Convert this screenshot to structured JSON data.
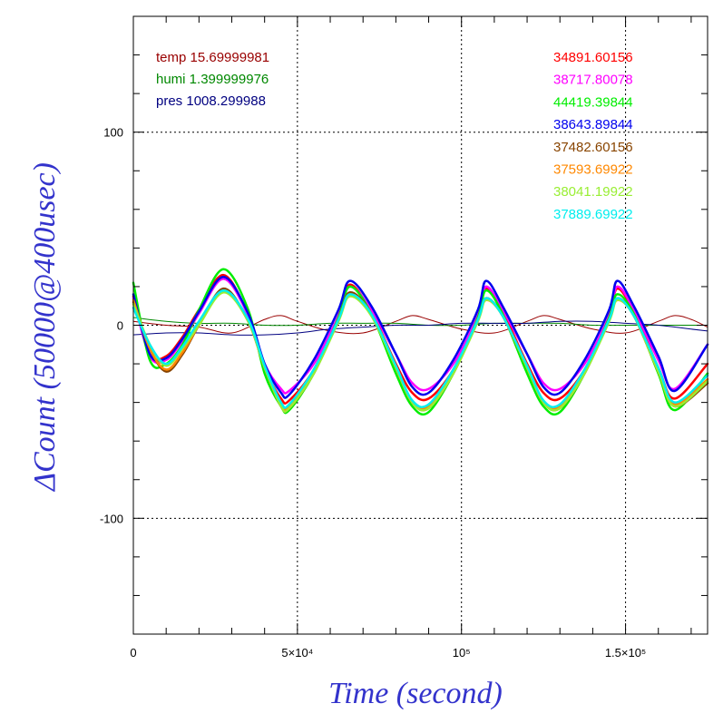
{
  "chart_data": {
    "type": "line",
    "xlabel": "Time (second)",
    "ylabel": "ΔCount (50000@400usec)",
    "xlim": [
      0,
      175000
    ],
    "ylim": [
      -160,
      160
    ],
    "x_ticks": [
      {
        "value": 0,
        "label": "0"
      },
      {
        "value": 50000,
        "label": "5×10⁴"
      },
      {
        "value": 100000,
        "label": "10⁵"
      },
      {
        "value": 150000,
        "label": "1.5×10⁵"
      }
    ],
    "y_ticks": [
      {
        "value": 100,
        "label": "100"
      },
      {
        "value": 0,
        "label": "0"
      },
      {
        "value": -100,
        "label": "-100"
      }
    ],
    "grid": true,
    "left_legend": [
      {
        "label": "temp",
        "value": "15.69999981",
        "color": "#990000"
      },
      {
        "label": "humi",
        "value": "1.399999976",
        "color": "#008800"
      },
      {
        "label": "pres",
        "value": "1008.299988",
        "color": "#000080"
      }
    ],
    "series": [
      {
        "name": "34891.60156",
        "color": "#ff0000",
        "x": [
          0,
          5000,
          10000,
          15000,
          20000,
          27500,
          35000,
          40000,
          45000,
          47500,
          55000,
          62500,
          66000,
          72500,
          80000,
          85000,
          90000,
          97500,
          105000,
          107500,
          112500,
          120000,
          125000,
          130000,
          137500,
          145000,
          147500,
          152500,
          160000,
          165000,
          175000
        ],
        "values": [
          15,
          -15,
          -16,
          -6,
          8,
          26,
          5,
          -22,
          -38,
          -39,
          -23,
          5,
          21,
          7,
          -20,
          -35,
          -38,
          -23,
          5,
          19,
          7,
          -20,
          -35,
          -38,
          -23,
          5,
          19,
          7,
          -22,
          -38,
          -20
        ]
      },
      {
        "name": "38717.80078",
        "color": "#ff00ff",
        "x": [
          0,
          5000,
          10000,
          15000,
          20000,
          27500,
          35000,
          40000,
          45000,
          47500,
          55000,
          62500,
          66000,
          72500,
          80000,
          85000,
          90000,
          97500,
          105000,
          107500,
          112500,
          120000,
          125000,
          130000,
          137500,
          145000,
          147500,
          152500,
          160000,
          165000,
          175000
        ],
        "values": [
          14,
          -16,
          -18,
          -8,
          6,
          24,
          5,
          -20,
          -33,
          -34,
          -20,
          5,
          20,
          8,
          -15,
          -30,
          -33,
          -20,
          5,
          20,
          8,
          -15,
          -30,
          -33,
          -20,
          5,
          20,
          8,
          -18,
          -33,
          -10
        ]
      },
      {
        "name": "44419.39844",
        "color": "#00ee00",
        "x": [
          0,
          5000,
          10000,
          15000,
          20000,
          27500,
          35000,
          40000,
          45000,
          47500,
          55000,
          62500,
          66000,
          72500,
          80000,
          85000,
          90000,
          97500,
          105000,
          107500,
          112500,
          120000,
          125000,
          130000,
          137500,
          145000,
          147500,
          152500,
          160000,
          165000,
          175000
        ],
        "values": [
          22,
          -18,
          -20,
          -10,
          8,
          29,
          8,
          -25,
          -42,
          -44,
          -25,
          4,
          20,
          6,
          -25,
          -42,
          -45,
          -25,
          4,
          18,
          6,
          -25,
          -42,
          -45,
          -25,
          4,
          16,
          6,
          -25,
          -44,
          -25
        ]
      },
      {
        "name": "38643.89844",
        "color": "#0000ee",
        "x": [
          0,
          5000,
          10000,
          15000,
          20000,
          27500,
          35000,
          40000,
          45000,
          47500,
          55000,
          62500,
          66000,
          72500,
          80000,
          85000,
          90000,
          97500,
          105000,
          107500,
          112500,
          120000,
          125000,
          130000,
          137500,
          145000,
          147500,
          152500,
          160000,
          165000,
          175000
        ],
        "values": [
          16,
          -15,
          -17,
          -7,
          7,
          25,
          6,
          -20,
          -35,
          -36,
          -18,
          8,
          23,
          10,
          -15,
          -32,
          -35,
          -18,
          8,
          23,
          10,
          -15,
          -32,
          -35,
          -18,
          8,
          23,
          10,
          -16,
          -34,
          -10
        ]
      },
      {
        "name": "37482.60156",
        "color": "#884400",
        "x": [
          0,
          5000,
          10000,
          15000,
          20000,
          27500,
          35000,
          40000,
          45000,
          47500,
          55000,
          62500,
          66000,
          72500,
          80000,
          85000,
          90000,
          97500,
          105000,
          107500,
          112500,
          120000,
          125000,
          130000,
          137500,
          145000,
          147500,
          152500,
          160000,
          165000,
          175000
        ],
        "values": [
          12,
          -12,
          -24,
          -15,
          0,
          19,
          2,
          -22,
          -42,
          -43,
          -25,
          3,
          17,
          6,
          -22,
          -40,
          -43,
          -25,
          3,
          14,
          5,
          -22,
          -40,
          -43,
          -25,
          3,
          14,
          5,
          -24,
          -42,
          -30
        ]
      },
      {
        "name": "37593.69922",
        "color": "#ff8800",
        "x": [
          0,
          5000,
          10000,
          15000,
          20000,
          27500,
          35000,
          40000,
          45000,
          47500,
          55000,
          62500,
          66000,
          72500,
          80000,
          85000,
          90000,
          97500,
          105000,
          107500,
          112500,
          120000,
          125000,
          130000,
          137500,
          145000,
          147500,
          152500,
          160000,
          165000,
          175000
        ],
        "values": [
          13,
          -12,
          -23,
          -14,
          0,
          18,
          2,
          -22,
          -41,
          -42,
          -24,
          3,
          16,
          6,
          -22,
          -40,
          -42,
          -24,
          3,
          13,
          5,
          -22,
          -40,
          -42,
          -24,
          3,
          13,
          5,
          -24,
          -41,
          -28
        ]
      },
      {
        "name": "38041.19922",
        "color": "#99ee33",
        "x": [
          0,
          5000,
          10000,
          15000,
          20000,
          27500,
          35000,
          40000,
          45000,
          47500,
          55000,
          62500,
          66000,
          72500,
          80000,
          85000,
          90000,
          97500,
          105000,
          107500,
          112500,
          120000,
          125000,
          130000,
          137500,
          145000,
          147500,
          152500,
          160000,
          165000,
          175000
        ],
        "values": [
          11,
          -10,
          -21,
          -12,
          0,
          17,
          2,
          -22,
          -42,
          -43,
          -25,
          2,
          15,
          5,
          -22,
          -40,
          -43,
          -25,
          2,
          13,
          5,
          -22,
          -40,
          -43,
          -25,
          2,
          13,
          5,
          -24,
          -42,
          -29
        ]
      },
      {
        "name": "37889.69922",
        "color": "#00eeee",
        "x": [
          0,
          5000,
          10000,
          15000,
          20000,
          27500,
          35000,
          40000,
          45000,
          47500,
          55000,
          62500,
          66000,
          72500,
          80000,
          85000,
          90000,
          97500,
          105000,
          107500,
          112500,
          120000,
          125000,
          130000,
          137500,
          145000,
          147500,
          152500,
          160000,
          165000,
          175000
        ],
        "values": [
          9,
          -10,
          -20,
          -11,
          2,
          18,
          3,
          -21,
          -40,
          -41,
          -23,
          3,
          16,
          6,
          -21,
          -39,
          -41,
          -23,
          3,
          14,
          5,
          -21,
          -39,
          -41,
          -23,
          3,
          14,
          5,
          -22,
          -40,
          -26
        ]
      },
      {
        "name": "temp",
        "color": "#990000",
        "thin": true,
        "x": [
          0,
          10000,
          20000,
          30000,
          40000,
          45000,
          50000,
          60000,
          70000,
          80000,
          85000,
          90000,
          100000,
          110000,
          120000,
          125000,
          130000,
          140000,
          150000,
          160000,
          165000,
          170000,
          175000
        ],
        "values": [
          2,
          0,
          -1,
          -4,
          3,
          5,
          2,
          -3,
          -4,
          2,
          5,
          3,
          -2,
          -4,
          2,
          5,
          3,
          -2,
          -4,
          2,
          5,
          3,
          -1
        ]
      },
      {
        "name": "humi",
        "color": "#008800",
        "thin": true,
        "x": [
          0,
          10000,
          20000,
          30000,
          40000,
          50000,
          60000,
          70000,
          80000,
          90000,
          100000,
          110000,
          120000,
          130000,
          140000,
          150000,
          160000,
          170000,
          175000
        ],
        "values": [
          4,
          2,
          1,
          1,
          0,
          0,
          1,
          1,
          1,
          0,
          0,
          1,
          1,
          1,
          0,
          0,
          0,
          0,
          0
        ]
      },
      {
        "name": "pres",
        "color": "#000080",
        "thin": true,
        "x": [
          0,
          10000,
          20000,
          30000,
          40000,
          50000,
          60000,
          70000,
          80000,
          90000,
          100000,
          110000,
          120000,
          130000,
          140000,
          150000,
          160000,
          170000,
          175000
        ],
        "values": [
          -5,
          -4,
          -4,
          -5,
          -5,
          -4,
          -2,
          -1,
          0,
          0,
          1,
          1,
          1,
          2,
          2,
          1,
          0,
          -2,
          -3
        ]
      }
    ]
  }
}
